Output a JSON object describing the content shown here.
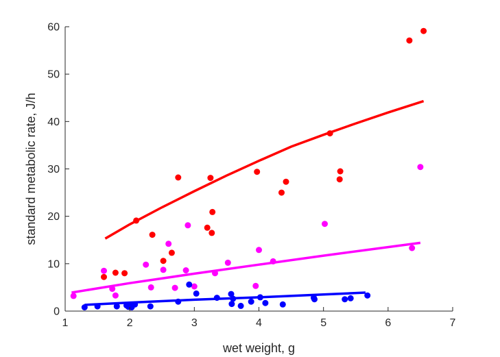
{
  "chart_data": {
    "type": "scatter",
    "xlabel": "wet weight, g",
    "ylabel": "standard metabolic rate, J/h",
    "xlim": [
      1,
      7
    ],
    "ylim": [
      0,
      60
    ],
    "xticks": [
      1,
      2,
      3,
      4,
      5,
      6,
      7
    ],
    "yticks": [
      0,
      10,
      20,
      30,
      40,
      50,
      60
    ],
    "grid": false,
    "series": [
      {
        "color": "#ff0000",
        "points": [
          [
            1.6,
            7.2
          ],
          [
            1.78,
            8.1
          ],
          [
            1.92,
            8.0
          ],
          [
            2.1,
            19.1
          ],
          [
            2.35,
            16.1
          ],
          [
            2.52,
            10.6
          ],
          [
            2.65,
            12.3
          ],
          [
            2.75,
            28.2
          ],
          [
            3.2,
            17.6
          ],
          [
            3.25,
            28.1
          ],
          [
            3.27,
            16.5
          ],
          [
            3.28,
            20.9
          ],
          [
            3.97,
            29.4
          ],
          [
            4.35,
            25.0
          ],
          [
            4.42,
            27.3
          ],
          [
            5.1,
            37.5
          ],
          [
            5.25,
            27.8
          ],
          [
            5.26,
            29.5
          ],
          [
            6.33,
            57.1
          ],
          [
            6.55,
            59.1
          ]
        ],
        "fit": [
          [
            1.62,
            15.3
          ],
          [
            2.0,
            18.3
          ],
          [
            2.5,
            21.9
          ],
          [
            3.0,
            25.3
          ],
          [
            3.5,
            28.6
          ],
          [
            4.0,
            31.7
          ],
          [
            4.5,
            34.7
          ],
          [
            5.0,
            37.2
          ],
          [
            5.5,
            39.6
          ],
          [
            6.0,
            41.9
          ],
          [
            6.55,
            44.3
          ]
        ]
      },
      {
        "color": "#ff00ff",
        "points": [
          [
            1.13,
            3.2
          ],
          [
            1.6,
            8.5
          ],
          [
            1.73,
            4.7
          ],
          [
            1.78,
            3.3
          ],
          [
            2.25,
            9.8
          ],
          [
            2.33,
            5.0
          ],
          [
            2.52,
            8.7
          ],
          [
            2.6,
            14.2
          ],
          [
            2.7,
            4.9
          ],
          [
            2.87,
            8.6
          ],
          [
            2.9,
            18.1
          ],
          [
            3.0,
            5.2
          ],
          [
            3.32,
            8.0
          ],
          [
            3.52,
            10.2
          ],
          [
            3.95,
            5.3
          ],
          [
            4.0,
            12.9
          ],
          [
            4.22,
            10.5
          ],
          [
            5.02,
            18.4
          ],
          [
            6.37,
            13.3
          ],
          [
            6.5,
            30.4
          ]
        ],
        "fit": [
          [
            1.1,
            3.9
          ],
          [
            2.0,
            5.9
          ],
          [
            3.0,
            7.9
          ],
          [
            4.0,
            9.8
          ],
          [
            5.0,
            11.7
          ],
          [
            6.0,
            13.5
          ],
          [
            6.5,
            14.4
          ]
        ]
      },
      {
        "color": "#0000ff",
        "points": [
          [
            1.3,
            0.8
          ],
          [
            1.5,
            1.0
          ],
          [
            1.8,
            1.0
          ],
          [
            1.95,
            1.2
          ],
          [
            1.98,
            0.9
          ],
          [
            2.0,
            1.1
          ],
          [
            2.03,
            0.8
          ],
          [
            2.05,
            1.3
          ],
          [
            2.08,
            1.4
          ],
          [
            2.32,
            1.0
          ],
          [
            2.75,
            2.0
          ],
          [
            2.92,
            5.6
          ],
          [
            3.03,
            3.7
          ],
          [
            3.35,
            2.8
          ],
          [
            3.57,
            3.6
          ],
          [
            3.58,
            1.5
          ],
          [
            3.6,
            2.6
          ],
          [
            3.72,
            1.1
          ],
          [
            3.88,
            2.0
          ],
          [
            4.02,
            2.9
          ],
          [
            4.1,
            1.7
          ],
          [
            4.37,
            1.4
          ],
          [
            4.85,
            2.8
          ],
          [
            4.86,
            2.5
          ],
          [
            5.33,
            2.5
          ],
          [
            5.42,
            2.7
          ],
          [
            5.68,
            3.3
          ]
        ],
        "fit": [
          [
            1.3,
            1.3
          ],
          [
            2.0,
            1.8
          ],
          [
            3.0,
            2.4
          ],
          [
            4.0,
            2.9
          ],
          [
            5.0,
            3.5
          ],
          [
            5.65,
            3.9
          ]
        ]
      }
    ]
  }
}
